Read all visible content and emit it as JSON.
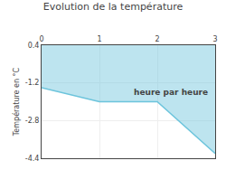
{
  "chart_data": {
    "type": "area",
    "title": "Evolution de la température",
    "ylabel": "Température en °C",
    "annotation": "heure par heure",
    "x": [
      0,
      1,
      2,
      3
    ],
    "values": [
      -1.4,
      -2.0,
      -2.0,
      -4.2
    ],
    "color": "#6cc4dc",
    "xlim": [
      0,
      3
    ],
    "ylim": [
      -4.4,
      0.4
    ],
    "xticks": [
      0,
      1,
      2,
      3
    ],
    "yticks": [
      0.4,
      -1.2,
      -2.8,
      -4.4
    ],
    "grid": true
  }
}
